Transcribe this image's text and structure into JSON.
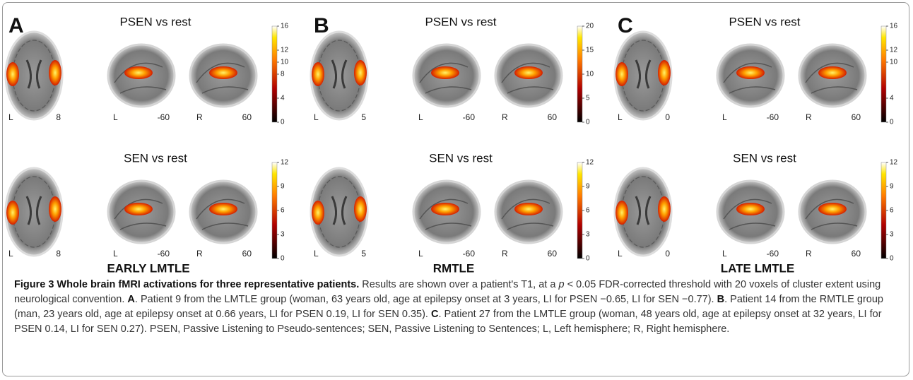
{
  "panels": [
    {
      "letter": "A",
      "footer": "EARLY LMTLE",
      "rows": [
        {
          "title": "PSEN vs rest",
          "colorbar_ticks": [
            16,
            12,
            10,
            8,
            4,
            0
          ],
          "slice_labels": [
            "L",
            "8",
            "L",
            "-60",
            "R",
            "60"
          ]
        },
        {
          "title": "SEN vs rest",
          "colorbar_ticks": [
            12,
            9,
            6,
            3,
            0
          ],
          "slice_labels": [
            "L",
            "8",
            "L",
            "-60",
            "R",
            "60"
          ]
        }
      ]
    },
    {
      "letter": "B",
      "footer": "RMTLE",
      "rows": [
        {
          "title": "PSEN vs rest",
          "colorbar_ticks": [
            20,
            15,
            10,
            5,
            0
          ],
          "slice_labels": [
            "L",
            "5",
            "L",
            "-60",
            "R",
            "60"
          ]
        },
        {
          "title": "SEN vs rest",
          "colorbar_ticks": [
            12,
            9,
            6,
            3,
            0
          ],
          "slice_labels": [
            "L",
            "5",
            "L",
            "-60",
            "R",
            "60"
          ]
        }
      ]
    },
    {
      "letter": "C",
      "footer": "LATE LMTLE",
      "rows": [
        {
          "title": "PSEN vs rest",
          "colorbar_ticks": [
            16,
            12,
            10,
            4,
            0
          ],
          "slice_labels": [
            "L",
            "0",
            "L",
            "-60",
            "R",
            "60"
          ]
        },
        {
          "title": "SEN vs rest",
          "colorbar_ticks": [
            12,
            9,
            6,
            3,
            0
          ],
          "slice_labels": [
            "L",
            "0",
            "L",
            "-60",
            "R",
            "60"
          ]
        }
      ]
    }
  ],
  "caption": [
    "Figure 3 Whole brain fMRI activations for three representative patients.",
    " Results are shown over a patient's T1, at a ",
    "p",
    " < 0.05 FDR-corrected threshold with 20 voxels of cluster extent using neurological convention. ",
    "A",
    ". Patient 9 from the LMTLE group (woman, 63 years old, age at epilepsy onset at 3 years, LI for PSEN −0.65, LI for SEN −0.77). ",
    "B",
    ". Patient 14 from the RMTLE group (man, 23 years old, age at epilepsy onset at 0.66 years, LI for PSEN 0.19, LI for SEN 0.35). ",
    "C",
    ". Patient 27 from the LMTLE group (woman, 48 years old, age at epilepsy onset at 32 years, LI for PSEN 0.14, LI for SEN 0.27). PSEN, Passive Listening to Pseudo-sentences; SEN, Passive Listening to Sentences; L, Left hemisphere; R, Right hemisphere."
  ]
}
